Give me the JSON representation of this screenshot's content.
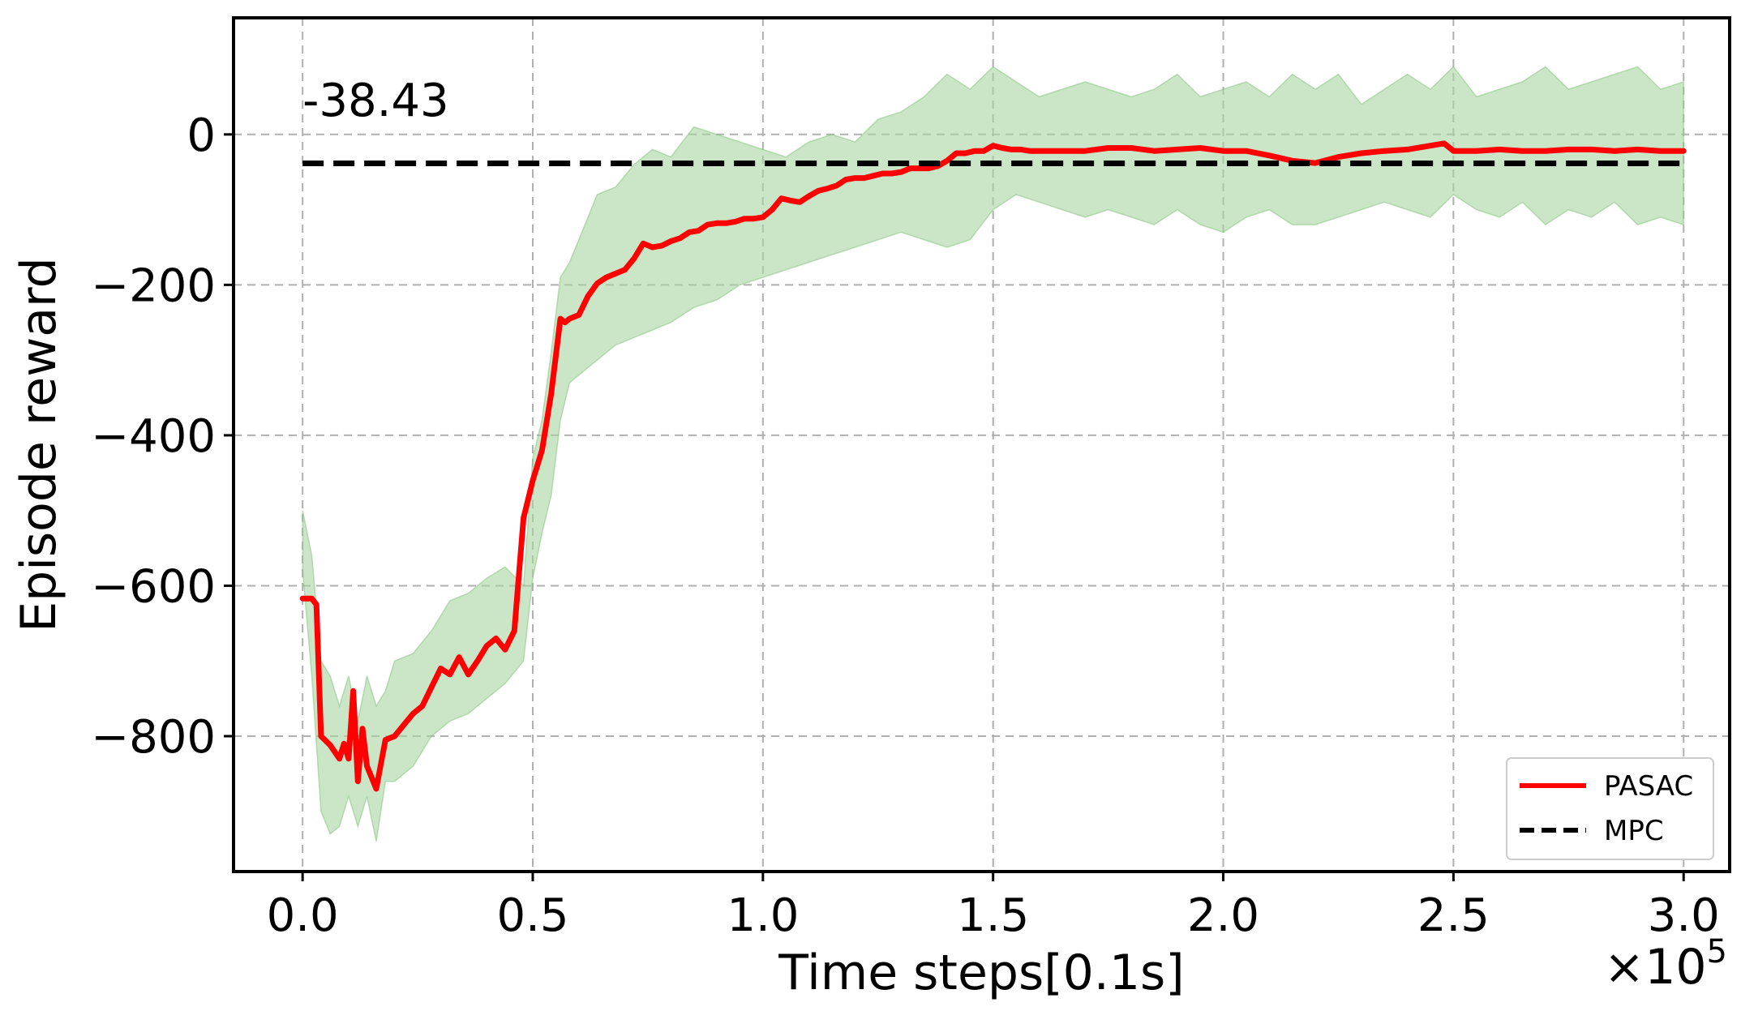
{
  "chart_data": {
    "type": "line",
    "xlabel": "Time steps[0.1s]",
    "ylabel": "Episode reward",
    "x_offset_label": "×10",
    "x_offset_exponent": "5",
    "xlim": [
      -0.15,
      3.1
    ],
    "ylim": [
      -980,
      155
    ],
    "xticks": [
      0.0,
      0.5,
      1.0,
      1.5,
      2.0,
      2.5,
      3.0
    ],
    "xtick_labels": [
      "0.0",
      "0.5",
      "1.0",
      "1.5",
      "2.0",
      "2.5",
      "3.0"
    ],
    "yticks": [
      0,
      -200,
      -400,
      -600,
      -800
    ],
    "ytick_labels": [
      "0",
      "−200",
      "−400",
      "−600",
      "−800"
    ],
    "grid": true,
    "legend_position": "lower-right",
    "annotation": {
      "text": "-38.43",
      "x": 0.0,
      "y": -38.43
    },
    "colors": {
      "pasac": "#ff0000",
      "band": "#a8d5a2",
      "mpc": "#000000",
      "grid": "#b0b0b0"
    },
    "series": [
      {
        "name": "PASAC",
        "style": "solid",
        "x": [
          0.0,
          0.02,
          0.03,
          0.04,
          0.06,
          0.08,
          0.09,
          0.1,
          0.11,
          0.12,
          0.13,
          0.14,
          0.16,
          0.18,
          0.2,
          0.22,
          0.24,
          0.26,
          0.28,
          0.3,
          0.32,
          0.34,
          0.36,
          0.38,
          0.4,
          0.42,
          0.44,
          0.46,
          0.48,
          0.5,
          0.52,
          0.54,
          0.56,
          0.57,
          0.58,
          0.6,
          0.62,
          0.64,
          0.66,
          0.68,
          0.7,
          0.72,
          0.74,
          0.76,
          0.78,
          0.8,
          0.82,
          0.84,
          0.86,
          0.88,
          0.9,
          0.92,
          0.94,
          0.96,
          0.98,
          1.0,
          1.02,
          1.04,
          1.06,
          1.08,
          1.1,
          1.12,
          1.14,
          1.16,
          1.18,
          1.2,
          1.22,
          1.24,
          1.26,
          1.28,
          1.3,
          1.32,
          1.34,
          1.36,
          1.38,
          1.4,
          1.42,
          1.44,
          1.46,
          1.48,
          1.5,
          1.52,
          1.54,
          1.56,
          1.58,
          1.6,
          1.65,
          1.7,
          1.75,
          1.8,
          1.85,
          1.9,
          1.95,
          2.0,
          2.05,
          2.1,
          2.15,
          2.2,
          2.25,
          2.3,
          2.35,
          2.4,
          2.45,
          2.48,
          2.5,
          2.55,
          2.6,
          2.65,
          2.7,
          2.75,
          2.8,
          2.85,
          2.9,
          2.95,
          3.0
        ],
        "y": [
          -617,
          -617,
          -625,
          -800,
          -812,
          -830,
          -810,
          -830,
          -740,
          -860,
          -790,
          -840,
          -870,
          -805,
          -800,
          -785,
          -770,
          -760,
          -735,
          -710,
          -718,
          -695,
          -718,
          -700,
          -680,
          -670,
          -685,
          -660,
          -510,
          -460,
          -420,
          -345,
          -245,
          -250,
          -245,
          -240,
          -215,
          -198,
          -190,
          -185,
          -180,
          -165,
          -145,
          -150,
          -148,
          -142,
          -138,
          -130,
          -128,
          -120,
          -118,
          -118,
          -116,
          -112,
          -112,
          -110,
          -100,
          -85,
          -88,
          -90,
          -82,
          -75,
          -72,
          -68,
          -60,
          -58,
          -58,
          -55,
          -52,
          -52,
          -50,
          -45,
          -45,
          -45,
          -42,
          -35,
          -25,
          -25,
          -22,
          -22,
          -15,
          -18,
          -20,
          -20,
          -22,
          -22,
          -22,
          -22,
          -18,
          -18,
          -22,
          -20,
          -18,
          -22,
          -22,
          -28,
          -35,
          -38,
          -30,
          -25,
          -22,
          -20,
          -15,
          -12,
          -22,
          -22,
          -20,
          -22,
          -22,
          -20,
          -20,
          -22,
          -20,
          -22,
          -22
        ]
      },
      {
        "name": "MPC",
        "style": "dashed",
        "x": [
          0.0,
          3.0
        ],
        "y": [
          -38.43,
          -38.43
        ]
      }
    ],
    "band": {
      "x": [
        0.0,
        0.02,
        0.04,
        0.06,
        0.08,
        0.1,
        0.12,
        0.14,
        0.16,
        0.18,
        0.2,
        0.24,
        0.28,
        0.32,
        0.36,
        0.4,
        0.44,
        0.48,
        0.5,
        0.52,
        0.54,
        0.56,
        0.58,
        0.6,
        0.64,
        0.68,
        0.72,
        0.76,
        0.8,
        0.85,
        0.9,
        0.95,
        1.0,
        1.05,
        1.1,
        1.15,
        1.2,
        1.25,
        1.3,
        1.35,
        1.4,
        1.45,
        1.5,
        1.55,
        1.6,
        1.65,
        1.7,
        1.75,
        1.8,
        1.85,
        1.9,
        1.95,
        2.0,
        2.05,
        2.1,
        2.15,
        2.2,
        2.25,
        2.3,
        2.35,
        2.4,
        2.45,
        2.5,
        2.55,
        2.6,
        2.65,
        2.7,
        2.75,
        2.8,
        2.85,
        2.9,
        2.95,
        3.0
      ],
      "upper": [
        -500,
        -560,
        -700,
        -720,
        -760,
        -720,
        -780,
        -720,
        -760,
        -740,
        -700,
        -690,
        -660,
        -620,
        -610,
        -590,
        -575,
        -600,
        -430,
        -380,
        -290,
        -190,
        -170,
        -140,
        -80,
        -70,
        -40,
        -20,
        -30,
        10,
        0,
        -10,
        -20,
        -30,
        -10,
        0,
        -10,
        20,
        30,
        50,
        80,
        60,
        90,
        70,
        50,
        60,
        70,
        60,
        50,
        60,
        80,
        50,
        60,
        70,
        50,
        80,
        60,
        80,
        40,
        60,
        80,
        60,
        90,
        50,
        60,
        70,
        90,
        60,
        70,
        80,
        90,
        60,
        70
      ],
      "lower": [
        -580,
        -720,
        -900,
        -930,
        -920,
        -880,
        -920,
        -880,
        -940,
        -860,
        -860,
        -840,
        -800,
        -780,
        -770,
        -750,
        -730,
        -700,
        -590,
        -530,
        -480,
        -380,
        -330,
        -320,
        -300,
        -280,
        -270,
        -260,
        -250,
        -230,
        -220,
        -200,
        -190,
        -180,
        -170,
        -160,
        -150,
        -140,
        -130,
        -140,
        -150,
        -140,
        -100,
        -80,
        -90,
        -100,
        -110,
        -100,
        -110,
        -120,
        -100,
        -120,
        -130,
        -110,
        -100,
        -120,
        -120,
        -110,
        -100,
        -90,
        -100,
        -110,
        -80,
        -100,
        -110,
        -90,
        -120,
        -100,
        -110,
        -90,
        -120,
        -110,
        -120
      ]
    }
  }
}
